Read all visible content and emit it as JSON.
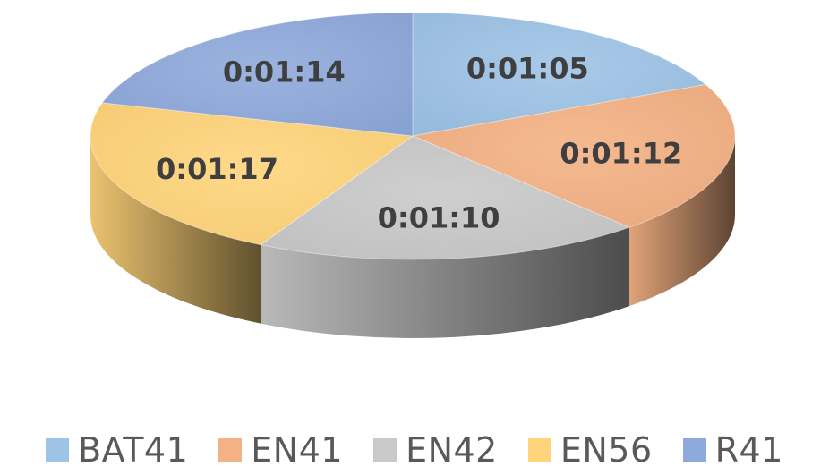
{
  "chart_data": {
    "type": "pie",
    "style": "3d",
    "categories": [
      "BAT41",
      "EN41",
      "EN42",
      "EN56",
      "R41"
    ],
    "values": [
      65,
      72,
      70,
      77,
      74
    ],
    "value_labels": [
      "0:01:05",
      "0:01:12",
      "0:01:10",
      "0:01:17",
      "0:01:14"
    ],
    "colors": [
      "#9dc3e6",
      "#f4b183",
      "#c9c9c9",
      "#ffd47a",
      "#8ea9db"
    ],
    "legend_position": "bottom"
  }
}
